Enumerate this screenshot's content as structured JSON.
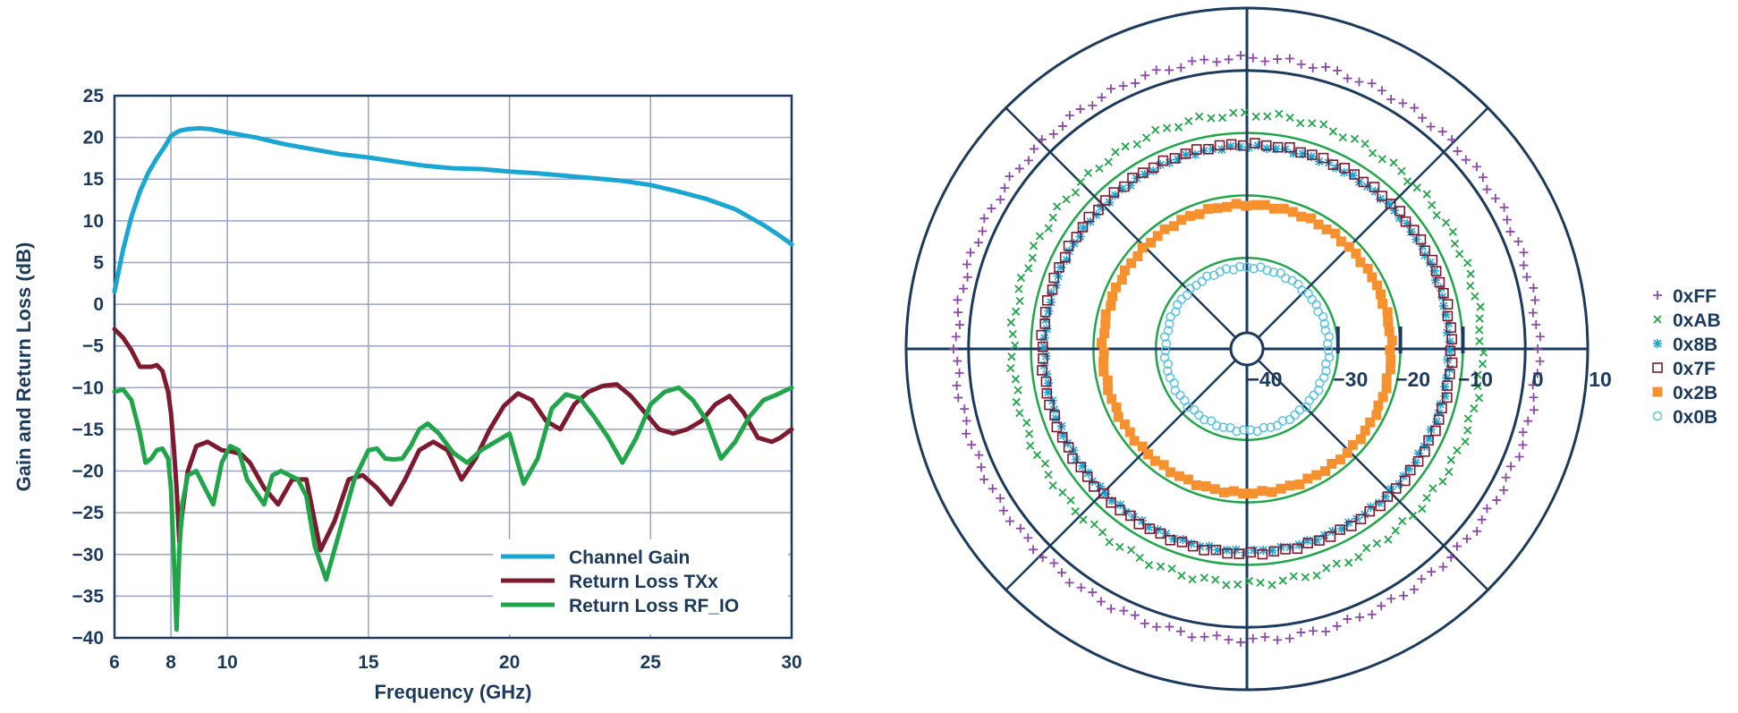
{
  "chart_data": [
    {
      "type": "line",
      "xlabel": "Frequency (GHz)",
      "ylabel": "Gain and Return Loss (dB)",
      "xlim": [
        6,
        30
      ],
      "ylim": [
        -40,
        25
      ],
      "xticks": [
        6,
        8,
        10,
        15,
        20,
        25,
        30
      ],
      "xtick_labels": [
        "6",
        "8",
        "10",
        "15",
        "20",
        "25",
        "30"
      ],
      "yticks": [
        25,
        20,
        15,
        10,
        5,
        0,
        -5,
        -10,
        -15,
        -20,
        -25,
        -30,
        -35,
        -40
      ],
      "ytick_labels": [
        "25",
        "20",
        "15",
        "10",
        "5",
        "0",
        "−5",
        "−10",
        "−15",
        "−20",
        "−25",
        "−30",
        "−35",
        "−40"
      ],
      "grid": true,
      "legend_position": "bottom-right",
      "series": [
        {
          "name": "Channel Gain",
          "color": "#1aa6d3",
          "x": [
            6.0,
            6.3,
            6.6,
            6.9,
            7.2,
            7.5,
            7.8,
            8.0,
            8.3,
            8.6,
            9.0,
            9.4,
            10.0,
            10.5,
            11.0,
            12.0,
            13.0,
            14.0,
            15.0,
            16.0,
            17.0,
            18.0,
            19.0,
            20.0,
            21.0,
            22.0,
            23.0,
            24.0,
            25.0,
            26.0,
            27.0,
            28.0,
            29.0,
            29.5,
            30.0
          ],
          "y": [
            1.5,
            6.5,
            10.5,
            13.5,
            15.8,
            17.5,
            19.0,
            20.2,
            20.8,
            21.0,
            21.1,
            21.0,
            20.6,
            20.3,
            20.0,
            19.2,
            18.6,
            18.0,
            17.6,
            17.1,
            16.6,
            16.3,
            16.2,
            15.9,
            15.7,
            15.4,
            15.1,
            14.8,
            14.3,
            13.5,
            12.6,
            11.4,
            9.5,
            8.4,
            7.2
          ]
        },
        {
          "name": "Return Loss TXx",
          "color": "#7d1a30",
          "x": [
            6.0,
            6.3,
            6.6,
            6.9,
            7.1,
            7.3,
            7.5,
            7.7,
            7.9,
            8.0,
            8.1,
            8.2,
            8.3,
            8.4,
            8.6,
            8.9,
            9.3,
            9.8,
            10.2,
            10.5,
            10.8,
            11.3,
            11.8,
            12.3,
            12.8,
            13.3,
            13.8,
            14.3,
            14.8,
            15.3,
            15.8,
            16.3,
            16.8,
            17.3,
            17.8,
            18.3,
            18.8,
            19.3,
            19.8,
            20.3,
            20.8,
            21.3,
            21.8,
            22.3,
            22.8,
            23.3,
            23.8,
            24.3,
            24.8,
            25.3,
            25.8,
            26.3,
            26.8,
            27.3,
            27.8,
            28.3,
            28.8,
            29.3,
            29.6,
            30.0
          ],
          "y": [
            -3,
            -4,
            -5.5,
            -7.5,
            -7.5,
            -7.5,
            -7.3,
            -8,
            -10.5,
            -13,
            -17,
            -22,
            -28.5,
            -25,
            -20,
            -17,
            -16.5,
            -17.5,
            -17.7,
            -18,
            -19,
            -22,
            -24,
            -21,
            -21,
            -29.5,
            -26,
            -21,
            -20.5,
            -22,
            -24,
            -21,
            -17.5,
            -16.5,
            -17.5,
            -21,
            -18.5,
            -15,
            -12.2,
            -10.7,
            -11.5,
            -14,
            -15,
            -12,
            -10.5,
            -9.8,
            -9.6,
            -11,
            -13,
            -15,
            -15.5,
            -15,
            -14,
            -12,
            -11,
            -13,
            -16,
            -16.5,
            -16,
            -15
          ]
        },
        {
          "name": "Return Loss RF_IO",
          "color": "#21a54a",
          "x": [
            6.0,
            6.3,
            6.6,
            6.9,
            7.1,
            7.3,
            7.5,
            7.7,
            7.9,
            8.0,
            8.1,
            8.2,
            8.3,
            8.4,
            8.6,
            8.9,
            9.2,
            9.5,
            9.8,
            10.1,
            10.4,
            10.7,
            11.0,
            11.3,
            11.6,
            11.9,
            12.2,
            12.5,
            12.8,
            13.1,
            13.5,
            14.0,
            14.5,
            15.0,
            15.3,
            15.6,
            15.9,
            16.2,
            16.5,
            16.8,
            17.1,
            17.5,
            18.0,
            18.5,
            19.0,
            19.5,
            20.0,
            20.5,
            21.0,
            21.5,
            22.0,
            22.5,
            23.0,
            23.5,
            24.0,
            24.5,
            25.0,
            25.5,
            26.0,
            26.5,
            27.0,
            27.5,
            28.0,
            28.5,
            29.0,
            29.5,
            30.0
          ],
          "y": [
            -10.5,
            -10.2,
            -11.5,
            -15.5,
            -19,
            -18.5,
            -17.5,
            -17.3,
            -18.5,
            -22,
            -30,
            -39,
            -29.5,
            -24,
            -20.5,
            -20,
            -22,
            -24,
            -19,
            -17,
            -17.5,
            -21,
            -22.5,
            -24,
            -20.5,
            -20,
            -20.5,
            -21,
            -23,
            -29,
            -33,
            -27,
            -21,
            -17.5,
            -17.3,
            -18.5,
            -18.6,
            -18.5,
            -17,
            -15,
            -14.3,
            -15.5,
            -17.8,
            -19,
            -17.5,
            -16.5,
            -15.5,
            -21.5,
            -18.5,
            -12.5,
            -10.8,
            -11.3,
            -13.5,
            -16,
            -19,
            -16,
            -12,
            -10.5,
            -10,
            -11.5,
            -14,
            -18.5,
            -16.5,
            -13.5,
            -11.5,
            -10.8,
            -10
          ]
        }
      ]
    },
    {
      "type": "scatter",
      "subtype": "polar",
      "radial_ticks": [
        -40,
        -30,
        -20,
        -10,
        0,
        10
      ],
      "radial_tick_labels": [
        "−40",
        "−30",
        "−20",
        "−10",
        "0",
        "10"
      ],
      "radial_range": [
        -45,
        10
      ],
      "angular_gridlines_deg": [
        0,
        45,
        90,
        135,
        180,
        225,
        270,
        315
      ],
      "reference_circles": [
        -30,
        -20,
        -10
      ],
      "legend_position": "right",
      "series": [
        {
          "name": "0xFF",
          "marker": "plus",
          "color": "#8b4aa6",
          "magnitude": 2,
          "points": 150
        },
        {
          "name": "0xAB",
          "marker": "x",
          "color": "#21a54a",
          "magnitude": -7,
          "points": 130
        },
        {
          "name": "0x8B",
          "marker": "asterisk",
          "color": "#1aa6d3",
          "magnitude": -12.2,
          "points": 140
        },
        {
          "name": "0x7F",
          "marker": "open-square",
          "color": "#7d1a30",
          "magnitude": -11.8,
          "points": 110
        },
        {
          "name": "0x2B",
          "marker": "filled-square",
          "color": "#f5922f",
          "magnitude": -21.5,
          "points": 95
        },
        {
          "name": "0x0B",
          "marker": "open-circle",
          "color": "#5bc3dc",
          "magnitude": -31.5,
          "points": 75
        }
      ]
    }
  ]
}
